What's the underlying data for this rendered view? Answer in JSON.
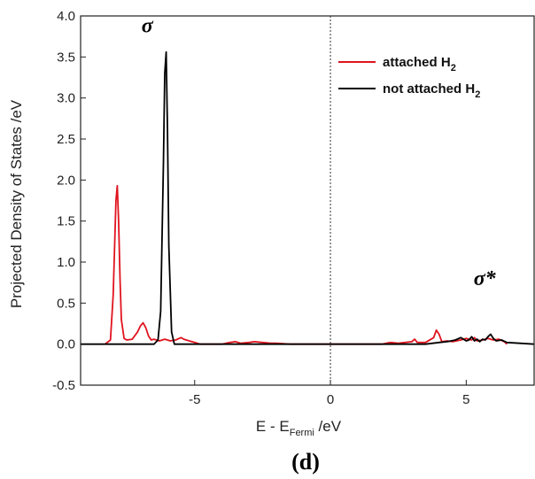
{
  "chart_data": {
    "type": "line",
    "xlabel": "E - E",
    "xlabel_sub": "Fermi",
    "xlabel_unit": " /eV",
    "ylabel": "Projected Density of States /eV",
    "xlim": [
      -9.2,
      7.5
    ],
    "ylim": [
      -0.5,
      4.0
    ],
    "x_ticks": [
      -5,
      0,
      5
    ],
    "x_tick_labels": [
      "-5",
      "0",
      "5"
    ],
    "y_ticks": [
      -0.5,
      0.0,
      0.5,
      1.0,
      1.5,
      2.0,
      2.5,
      3.0,
      3.5,
      4.0
    ],
    "y_tick_labels": [
      "-0.5",
      "0.0",
      "0.5",
      "1.0",
      "1.5",
      "2.0",
      "2.5",
      "3.0",
      "3.5",
      "4.0"
    ],
    "fermi_line_x": 0,
    "legend_position": "top-right",
    "series": [
      {
        "name": "attached H",
        "name_sub": "2",
        "color": "#e0141e",
        "x": [
          -8.3,
          -8.1,
          -8.0,
          -7.9,
          -7.85,
          -7.8,
          -7.75,
          -7.7,
          -7.6,
          -7.5,
          -7.3,
          -7.1,
          -7.0,
          -6.9,
          -6.8,
          -6.7,
          -6.6,
          -6.5,
          -6.3,
          -6.1,
          -6.0,
          -5.9,
          -5.7,
          -5.5,
          -5.4,
          -5.2,
          -5.0,
          -4.8,
          -4.0,
          -3.7,
          -3.5,
          -3.3,
          -3.0,
          -2.8,
          -2.5,
          -2.2,
          -2.0,
          -1.5,
          0.0,
          1.9,
          2.2,
          2.5,
          3.0,
          3.1,
          3.2,
          3.5,
          3.8,
          3.9,
          4.0,
          4.1,
          4.3,
          4.5,
          4.8,
          5.0,
          5.2,
          5.3,
          5.4,
          5.6,
          5.8,
          6.0,
          6.2,
          6.4,
          6.5
        ],
        "y": [
          0.0,
          0.05,
          0.6,
          1.75,
          1.93,
          1.5,
          0.8,
          0.3,
          0.07,
          0.05,
          0.06,
          0.15,
          0.22,
          0.26,
          0.2,
          0.1,
          0.05,
          0.06,
          0.04,
          0.06,
          0.05,
          0.04,
          0.05,
          0.08,
          0.06,
          0.04,
          0.02,
          0.0,
          0.0,
          0.02,
          0.03,
          0.01,
          0.02,
          0.03,
          0.02,
          0.01,
          0.01,
          0.0,
          0.0,
          0.0,
          0.02,
          0.01,
          0.03,
          0.06,
          0.02,
          0.02,
          0.08,
          0.17,
          0.12,
          0.03,
          0.04,
          0.03,
          0.05,
          0.07,
          0.05,
          0.08,
          0.04,
          0.05,
          0.07,
          0.05,
          0.06,
          0.03,
          0.0
        ]
      },
      {
        "name": "not attached H",
        "name_sub": "2",
        "color": "#000000",
        "x": [
          -9.2,
          -6.5,
          -6.35,
          -6.25,
          -6.15,
          -6.1,
          -6.05,
          -6.0,
          -5.95,
          -5.85,
          -5.75,
          -5.5,
          3.5,
          4.0,
          4.3,
          4.6,
          4.8,
          4.9,
          5.0,
          5.1,
          5.2,
          5.3,
          5.4,
          5.5,
          5.6,
          5.7,
          5.8,
          5.9,
          6.0,
          6.1,
          6.3,
          6.5,
          7.5
        ],
        "y": [
          0.0,
          0.0,
          0.05,
          0.4,
          2.2,
          3.3,
          3.56,
          2.6,
          1.2,
          0.15,
          0.0,
          0.0,
          0.0,
          0.02,
          0.03,
          0.05,
          0.08,
          0.06,
          0.04,
          0.05,
          0.09,
          0.04,
          0.06,
          0.03,
          0.06,
          0.05,
          0.09,
          0.12,
          0.07,
          0.04,
          0.05,
          0.02,
          0.0
        ]
      }
    ],
    "annotations": [
      {
        "text": "σ",
        "x": -6.5,
        "y": 3.8
      },
      {
        "text": "σ*",
        "x": 5.6,
        "y": 0.72
      }
    ],
    "panel_label": "(d)"
  }
}
